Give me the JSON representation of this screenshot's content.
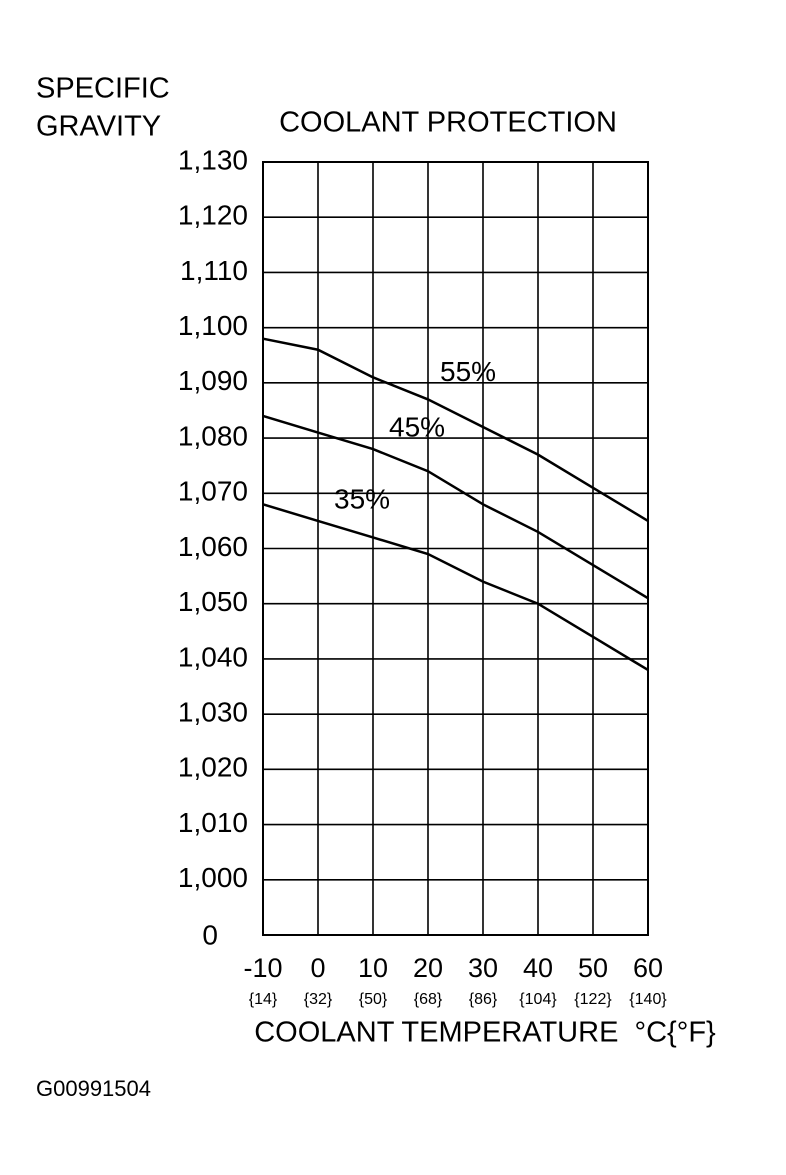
{
  "chart_data": {
    "type": "line",
    "title": "COOLANT PROTECTION",
    "ylabel": [
      "SPECIFIC",
      "GRAVITY"
    ],
    "xlabel": "COOLANT TEMPERATURE  °C{°F}",
    "y_origin_label": "0",
    "x": [
      -10,
      0,
      10,
      20,
      30,
      40,
      50,
      60
    ],
    "x_sublabels": [
      "{14}",
      "{32}",
      "{50}",
      "{68}",
      "{86}",
      "{104}",
      "{122}",
      "{140}"
    ],
    "xlim": [
      -10,
      60
    ],
    "xticks": [
      -10,
      0,
      10,
      20,
      30,
      40,
      50,
      60
    ],
    "ylim": [
      0.99,
      1.13
    ],
    "yticks": [
      {
        "value": 1.0,
        "label": "1,000"
      },
      {
        "value": 1.01,
        "label": "1,010"
      },
      {
        "value": 1.02,
        "label": "1,020"
      },
      {
        "value": 1.03,
        "label": "1,030"
      },
      {
        "value": 1.04,
        "label": "1,040"
      },
      {
        "value": 1.05,
        "label": "1,050"
      },
      {
        "value": 1.06,
        "label": "1,060"
      },
      {
        "value": 1.07,
        "label": "1,070"
      },
      {
        "value": 1.08,
        "label": "1,080"
      },
      {
        "value": 1.09,
        "label": "1,090"
      },
      {
        "value": 1.1,
        "label": "1,100"
      },
      {
        "value": 1.11,
        "label": "1,110"
      },
      {
        "value": 1.12,
        "label": "1,120"
      },
      {
        "value": 1.13,
        "label": "1,130"
      }
    ],
    "grid": true,
    "series": [
      {
        "name": "55%",
        "color": "#000000",
        "values": [
          1.098,
          1.096,
          1.091,
          1.087,
          1.082,
          1.077,
          1.071,
          1.065
        ]
      },
      {
        "name": "45%",
        "color": "#000000",
        "values": [
          1.084,
          1.081,
          1.078,
          1.074,
          1.068,
          1.063,
          1.057,
          1.051
        ]
      },
      {
        "name": "35%",
        "color": "#000000",
        "values": [
          1.068,
          1.065,
          1.062,
          1.059,
          1.054,
          1.05,
          1.044,
          1.038
        ]
      }
    ],
    "figure_id": "G00991504"
  }
}
